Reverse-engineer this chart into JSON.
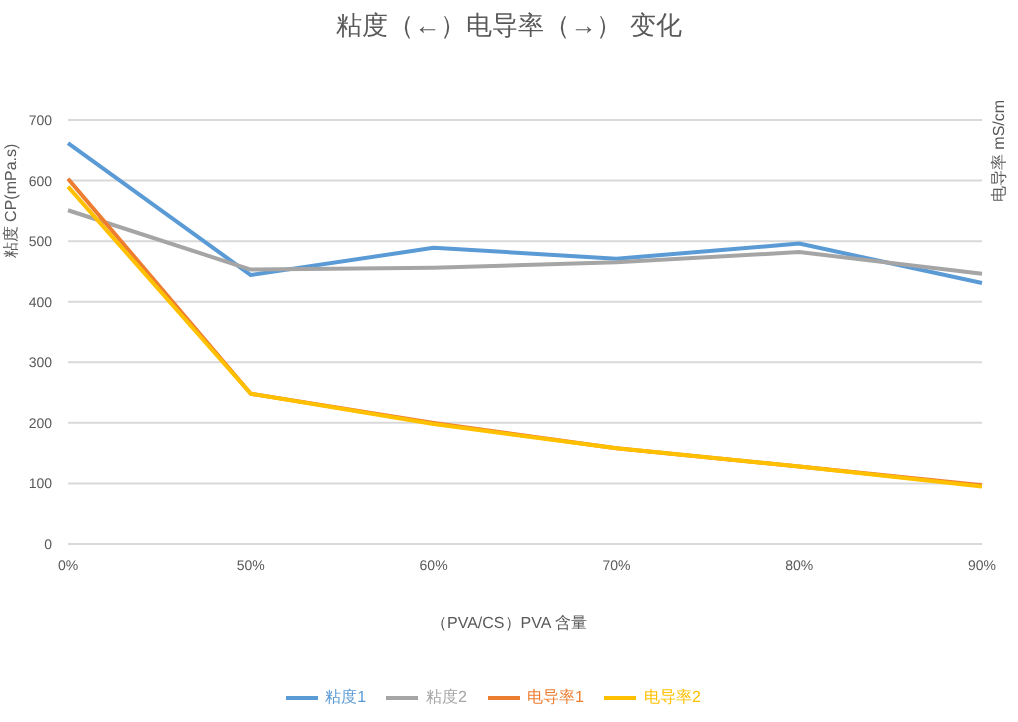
{
  "chart_data": {
    "type": "line",
    "title": "粘度（←）电导率（→） 变化",
    "xlabel": "（PVA/CS）PVA 含量",
    "ylabel": "粘度 CP(mPa.s)",
    "y2label": "电导率 mS/cm",
    "categories": [
      "0%",
      "50%",
      "60%",
      "70%",
      "80%",
      "90%"
    ],
    "series": [
      {
        "name": "粘度1",
        "color": "#5b9bd5",
        "values": [
          662,
          444,
          489,
          471,
          496,
          431
        ]
      },
      {
        "name": "粘度2",
        "color": "#a5a5a5",
        "values": [
          551,
          453,
          456,
          465,
          482,
          446
        ]
      },
      {
        "name": "电导率1",
        "color": "#ed7d31",
        "values": [
          603,
          248,
          200,
          158,
          128,
          97
        ]
      },
      {
        "name": "电导率2",
        "color": "#ffc000",
        "values": [
          590,
          248,
          198,
          158,
          128,
          95
        ]
      }
    ],
    "ylim": [
      0,
      700
    ],
    "yticks": [
      0,
      100,
      200,
      300,
      400,
      500,
      600,
      700
    ],
    "grid": "y",
    "legend": "bottom",
    "marker": "none",
    "line_style": "solid"
  }
}
